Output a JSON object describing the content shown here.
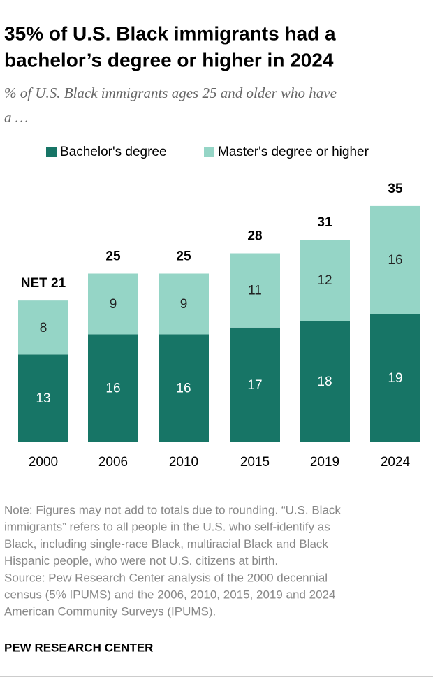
{
  "chart_data": {
    "type": "stacked-bar",
    "title": [
      "35% of U.S. Black immigrants had a",
      "bachelor’s degree or higher in 2024"
    ],
    "subtitle": [
      "% of U.S. Black immigrants ages 25 and older who have",
      "a …"
    ],
    "categories": [
      "2000",
      "2006",
      "2010",
      "2015",
      "2019",
      "2024"
    ],
    "series": [
      {
        "name": "Bachelor's degree",
        "color": "#177566",
        "values": [
          13,
          16,
          16,
          17,
          18,
          19
        ]
      },
      {
        "name": "Master's degree or higher",
        "color": "#95d5c6",
        "values": [
          8,
          9,
          9,
          11,
          12,
          16
        ]
      }
    ],
    "totals": [
      {
        "value": 21,
        "label": "NET 21"
      },
      25,
      25,
      28,
      31,
      35
    ],
    "note": [
      "Note: Figures may not add to totals due to rounding. “U.S. Black",
      "immigrants” refers to all people in the U.S. who self-identify as",
      "Black, including single-race Black, multiracial Black and Black",
      "Hispanic people, who were not U.S. citizens at birth.",
      "Source: Pew Research Center analysis of the 2000 decennial",
      "census (5% IPUMS) and the 2006, 2010, 2015, 2019 and 2024",
      "American Community Surveys (IPUMS)."
    ],
    "source_brand": "PEW RESEARCH CENTER"
  }
}
